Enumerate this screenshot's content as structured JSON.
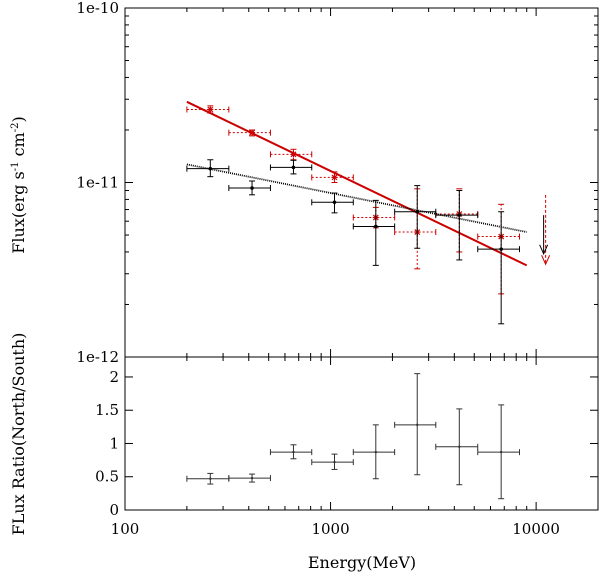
{
  "chart_data": [
    {
      "type": "scatter",
      "panel": "top",
      "xlabel": "",
      "ylabel": "Flux(erg s-1 cm-2)",
      "ylabel_parts": [
        "Flux(erg s",
        "-1",
        " cm",
        "-2",
        ")"
      ],
      "xscale": "log",
      "yscale": "log",
      "xlim": [
        100,
        20000
      ],
      "ylim": [
        1e-12,
        1e-10
      ],
      "y_ticks": [
        1e-12,
        1e-11,
        1e-10
      ],
      "y_tick_labels": [
        "1e-12",
        "1e-11",
        "1e-10"
      ],
      "grid": false,
      "colors": {
        "north": "#cc0000",
        "south": "#000000"
      },
      "series": [
        {
          "key": "north",
          "style": "dotted errorbars, asterisk markers",
          "points": [
            {
              "x": 260,
              "xlo": 200,
              "xhi": 320,
              "y": 2.62e-11,
              "ylo": 2.5e-11,
              "yhi": 2.75e-11
            },
            {
              "x": 415,
              "xlo": 320,
              "xhi": 510,
              "y": 1.93e-11,
              "ylo": 1.85e-11,
              "yhi": 2e-11
            },
            {
              "x": 660,
              "xlo": 510,
              "xhi": 810,
              "y": 1.45e-11,
              "ylo": 1.35e-11,
              "yhi": 1.55e-11
            },
            {
              "x": 1045,
              "xlo": 810,
              "xhi": 1290,
              "y": 1.07e-11,
              "ylo": 1e-11,
              "yhi": 1.15e-11
            },
            {
              "x": 1660,
              "xlo": 1290,
              "xhi": 2050,
              "y": 6.3e-12,
              "ylo": 5.5e-12,
              "yhi": 7.2e-12
            },
            {
              "x": 2640,
              "xlo": 2050,
              "xhi": 3250,
              "y": 5.2e-12,
              "ylo": 3.2e-12,
              "yhi": 9.2e-12
            },
            {
              "x": 4230,
              "xlo": 3250,
              "xhi": 5200,
              "y": 6.6e-12,
              "ylo": 4e-12,
              "yhi": 9.2e-12
            },
            {
              "x": 6760,
              "xlo": 5200,
              "xhi": 8300,
              "y": 4.9e-12,
              "ylo": 2.3e-12,
              "yhi": 7.5e-12
            }
          ],
          "upper_limit": {
            "x": 11000,
            "y_top": 8.5e-12,
            "y_arrow": 3.4e-12
          },
          "fit_line": {
            "x": [
              200,
              9000
            ],
            "y": [
              2.9e-11,
              3.35e-12
            ]
          }
        },
        {
          "key": "south",
          "style": "solid errorbars, dot markers",
          "points": [
            {
              "x": 260,
              "xlo": 200,
              "xhi": 320,
              "y": 1.2e-11,
              "ylo": 1.08e-11,
              "yhi": 1.35e-11
            },
            {
              "x": 415,
              "xlo": 320,
              "xhi": 510,
              "y": 9.3e-12,
              "ylo": 8.5e-12,
              "yhi": 1.02e-11
            },
            {
              "x": 660,
              "xlo": 510,
              "xhi": 810,
              "y": 1.22e-11,
              "ylo": 1.12e-11,
              "yhi": 1.34e-11
            },
            {
              "x": 1045,
              "xlo": 810,
              "xhi": 1290,
              "y": 7.7e-12,
              "ylo": 6.7e-12,
              "yhi": 8.7e-12
            },
            {
              "x": 1660,
              "xlo": 1290,
              "xhi": 2050,
              "y": 5.6e-12,
              "ylo": 3.35e-12,
              "yhi": 7.9e-12
            },
            {
              "x": 2640,
              "xlo": 2050,
              "xhi": 3250,
              "y": 6.8e-12,
              "ylo": 4.2e-12,
              "yhi": 9.6e-12
            },
            {
              "x": 4230,
              "xlo": 3250,
              "xhi": 5200,
              "y": 6.5e-12,
              "ylo": 3.6e-12,
              "yhi": 9e-12
            },
            {
              "x": 6760,
              "xlo": 5200,
              "xhi": 8300,
              "y": 4.15e-12,
              "ylo": 1.55e-12,
              "yhi": 6.8e-12
            }
          ],
          "upper_limit": {
            "x": 11000,
            "y_top": 6.5e-12,
            "y_arrow": 3.9e-12
          },
          "fit_line": {
            "x": [
              200,
              9000
            ],
            "y": [
              1.27e-11,
              5.2e-12
            ]
          }
        }
      ]
    },
    {
      "type": "scatter",
      "panel": "bottom",
      "xlabel": "Energy(MeV)",
      "ylabel": "FLux Ratio(North/South)",
      "xscale": "log",
      "xlim": [
        100,
        20000
      ],
      "ylim": [
        0,
        2.3
      ],
      "x_ticks": [
        100,
        1000,
        10000
      ],
      "x_tick_labels": [
        "100",
        "1000",
        "10000"
      ],
      "y_ticks": [
        0,
        0.5,
        1,
        1.5,
        2
      ],
      "y_tick_labels": [
        "0",
        "0.5",
        "1",
        "1.5",
        "2"
      ],
      "grid": false,
      "points": [
        {
          "x": 260,
          "xlo": 200,
          "xhi": 320,
          "y": 0.47,
          "ylo": 0.39,
          "yhi": 0.55
        },
        {
          "x": 415,
          "xlo": 320,
          "xhi": 510,
          "y": 0.48,
          "ylo": 0.42,
          "yhi": 0.54
        },
        {
          "x": 660,
          "xlo": 510,
          "xhi": 810,
          "y": 0.87,
          "ylo": 0.77,
          "yhi": 0.98
        },
        {
          "x": 1045,
          "xlo": 810,
          "xhi": 1290,
          "y": 0.72,
          "ylo": 0.61,
          "yhi": 0.84
        },
        {
          "x": 1660,
          "xlo": 1290,
          "xhi": 2050,
          "y": 0.87,
          "ylo": 0.47,
          "yhi": 1.28
        },
        {
          "x": 2640,
          "xlo": 2050,
          "xhi": 3250,
          "y": 1.28,
          "ylo": 0.53,
          "yhi": 2.05
        },
        {
          "x": 4230,
          "xlo": 3250,
          "xhi": 5200,
          "y": 0.95,
          "ylo": 0.38,
          "yhi": 1.52
        },
        {
          "x": 6760,
          "xlo": 5200,
          "xhi": 8300,
          "y": 0.87,
          "ylo": 0.17,
          "yhi": 1.58
        }
      ]
    }
  ]
}
